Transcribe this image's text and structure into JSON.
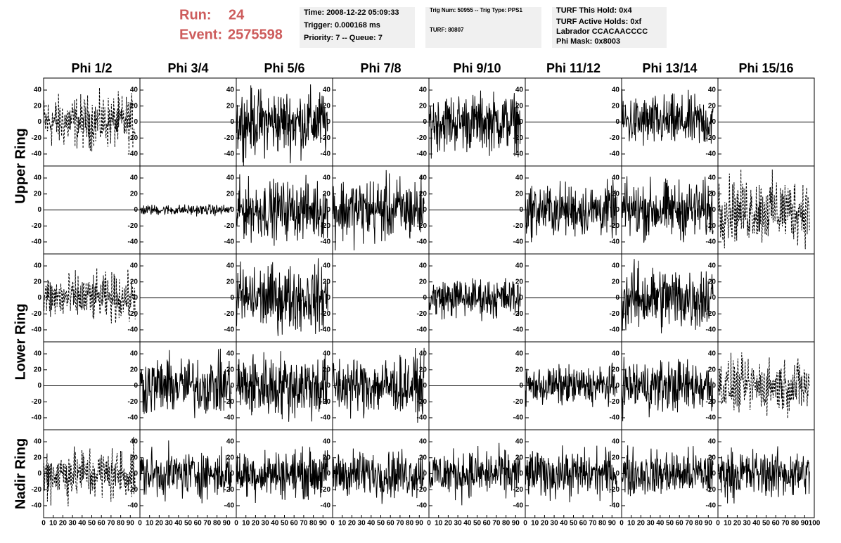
{
  "header": {
    "run_label": "Run:",
    "run": "24",
    "event_label": "Event:",
    "event": "2575598"
  },
  "info_boxes": [
    [
      "Time: 2008-12-22 05:09:33",
      "Trigger: 0.000168 ms",
      "Priority: 7 -- Queue: 7"
    ],
    [
      "Trig Num: 50955 -- Trig Type: PPS1",
      "TURF: 80807"
    ],
    [
      "TURF This Hold: 0x4",
      "TURF Active Holds: 0xf",
      {
        "text": "Labrador CCACAACCCC",
        "color": "#e000e0"
      },
      "Phi Mask: 0x8003"
    ]
  ],
  "columns": [
    "Phi 1/2",
    "Phi 3/4",
    "Phi 5/6",
    "Phi 7/8",
    "Phi 9/10",
    "Phi 11/12",
    "Phi 13/14",
    "Phi 15/16"
  ],
  "rings": [
    "Upper Ring",
    "Lower Ring",
    "Nadir Ring"
  ],
  "chart_data": {
    "type": "line",
    "ylim": [
      -55,
      55
    ],
    "yticks": [
      -40,
      -20,
      0,
      20,
      40
    ],
    "xlim": [
      0,
      100
    ],
    "xticks": [
      0,
      10,
      20,
      30,
      40,
      50,
      60,
      70,
      80,
      90,
      100
    ],
    "panels": [
      [
        {
          "style": "dashed",
          "amplitude": 20
        },
        {
          "style": "flat",
          "amplitude": 0
        },
        {
          "style": "solid",
          "amplitude": 25
        },
        {
          "style": "flat",
          "amplitude": 0
        },
        {
          "style": "solid",
          "amplitude": 22
        },
        {
          "style": "flat",
          "amplitude": 0
        },
        {
          "style": "solid",
          "amplitude": 20
        },
        {
          "style": "flat",
          "amplitude": 0
        }
      ],
      [
        {
          "style": "flat",
          "amplitude": 0
        },
        {
          "style": "solid",
          "amplitude": 4
        },
        {
          "style": "solid",
          "amplitude": 22
        },
        {
          "style": "solid",
          "amplitude": 25
        },
        {
          "style": "flat",
          "amplitude": 0
        },
        {
          "style": "solid",
          "amplitude": 20
        },
        {
          "style": "solid",
          "amplitude": 22
        },
        {
          "style": "dashed",
          "amplitude": 25
        }
      ],
      [
        {
          "style": "dashed",
          "amplitude": 18
        },
        {
          "style": "flat",
          "amplitude": 0
        },
        {
          "style": "solid",
          "amplitude": 25
        },
        {
          "style": "flat",
          "amplitude": 0
        },
        {
          "style": "solid",
          "amplitude": 15
        },
        {
          "style": "flat",
          "amplitude": 0
        },
        {
          "style": "solid",
          "amplitude": 25
        },
        {
          "style": "flat",
          "amplitude": 0
        }
      ],
      [
        {
          "style": "flat",
          "amplitude": 0
        },
        {
          "style": "solid",
          "amplitude": 22
        },
        {
          "style": "solid",
          "amplitude": 25
        },
        {
          "style": "solid",
          "amplitude": 22
        },
        {
          "style": "flat",
          "amplitude": 0
        },
        {
          "style": "solid",
          "amplitude": 15
        },
        {
          "style": "solid",
          "amplitude": 20
        },
        {
          "style": "dashed",
          "amplitude": 20
        }
      ],
      [
        {
          "style": "dashed",
          "amplitude": 20
        },
        {
          "style": "solid",
          "amplitude": 18
        },
        {
          "style": "solid",
          "amplitude": 18
        },
        {
          "style": "solid",
          "amplitude": 18
        },
        {
          "style": "solid",
          "amplitude": 18
        },
        {
          "style": "solid",
          "amplitude": 18
        },
        {
          "style": "solid",
          "amplitude": 18
        },
        {
          "style": "solid",
          "amplitude": 18
        }
      ]
    ]
  }
}
